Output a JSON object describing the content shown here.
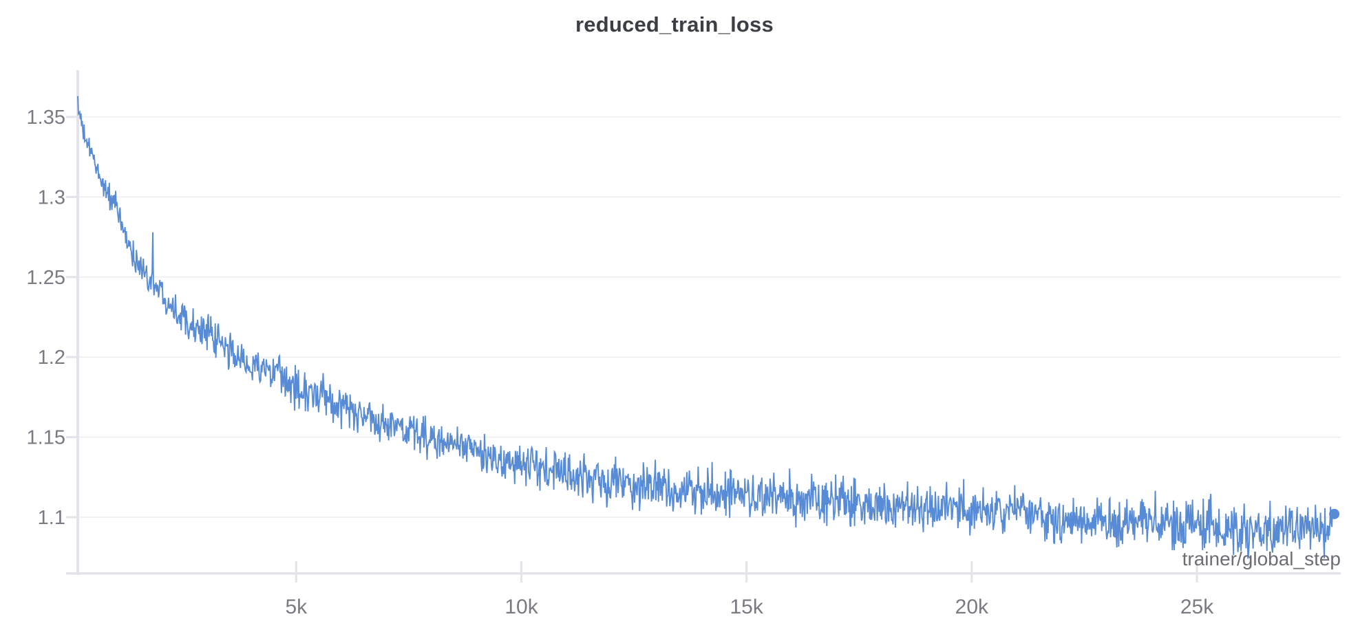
{
  "chart_data": {
    "type": "line",
    "title": "reduced_train_loss",
    "xlabel": "trainer/global_step",
    "ylabel": "",
    "legend": "none",
    "grid": "horizontal-only",
    "background": "#ffffff",
    "line_color": "#588bd6",
    "axis_color": "#e3e3ea",
    "grid_color": "#eeeef2",
    "tick_label_color": "#7b7a82",
    "axis_label_color": "#6e6d75",
    "title_color": "#3b3e44",
    "x_range": [
      150,
      28050
    ],
    "y_range": [
      1.065,
      1.379
    ],
    "x_ticks": [
      {
        "value": 5000,
        "label": "5k"
      },
      {
        "value": 10000,
        "label": "10k"
      },
      {
        "value": 15000,
        "label": "15k"
      },
      {
        "value": 20000,
        "label": "20k"
      },
      {
        "value": 25000,
        "label": "25k"
      }
    ],
    "y_ticks": [
      {
        "value": 1.35,
        "label": "1.35"
      },
      {
        "value": 1.3,
        "label": "1.3"
      },
      {
        "value": 1.25,
        "label": "1.25"
      },
      {
        "value": 1.2,
        "label": "1.2"
      },
      {
        "value": 1.15,
        "label": "1.15"
      },
      {
        "value": 1.1,
        "label": "1.1"
      }
    ],
    "series": [
      {
        "name": "reduced_train_loss",
        "style": "noisy-line",
        "endpoint_marker": true,
        "last_point": {
          "step": 28050,
          "value": 1.102
        },
        "spikes": [
          [
            1816,
            1.278
          ]
        ],
        "trend_points": [
          [
            150,
            1.363
          ],
          [
            200,
            1.349
          ],
          [
            300,
            1.337
          ],
          [
            450,
            1.327
          ],
          [
            600,
            1.316
          ],
          [
            715,
            1.308
          ],
          [
            1000,
            1.293
          ],
          [
            1250,
            1.272
          ],
          [
            1480,
            1.258
          ],
          [
            1816,
            1.247
          ],
          [
            2244,
            1.2325
          ],
          [
            2600,
            1.223
          ],
          [
            3008,
            1.215
          ],
          [
            3400,
            1.206
          ],
          [
            3772,
            1.199
          ],
          [
            4537,
            1.188
          ],
          [
            5000,
            1.181
          ],
          [
            5500,
            1.175
          ],
          [
            6000,
            1.169
          ],
          [
            6500,
            1.1635
          ],
          [
            7000,
            1.158
          ],
          [
            7500,
            1.1535
          ],
          [
            8000,
            1.149
          ],
          [
            8500,
            1.145
          ],
          [
            9100,
            1.14
          ],
          [
            10000,
            1.132
          ],
          [
            11000,
            1.127
          ],
          [
            12000,
            1.1225
          ],
          [
            13000,
            1.119
          ],
          [
            14000,
            1.116
          ],
          [
            15000,
            1.1135
          ],
          [
            16000,
            1.111
          ],
          [
            17000,
            1.109
          ],
          [
            18000,
            1.1075
          ],
          [
            19000,
            1.106
          ],
          [
            20000,
            1.1045
          ],
          [
            21000,
            1.103
          ],
          [
            22000,
            1.0985
          ],
          [
            23000,
            1.097
          ],
          [
            24000,
            1.096
          ],
          [
            25000,
            1.0955
          ],
          [
            26000,
            1.094
          ],
          [
            27000,
            1.0925
          ],
          [
            27700,
            1.0915
          ],
          [
            27950,
            1.0905
          ],
          [
            28050,
            1.102
          ]
        ],
        "noise_halfwidth": [
          [
            150,
            0.009
          ],
          [
            600,
            0.011
          ],
          [
            1500,
            0.013
          ],
          [
            3000,
            0.016
          ],
          [
            5000,
            0.018
          ],
          [
            8000,
            0.019
          ],
          [
            12000,
            0.021
          ],
          [
            16000,
            0.022
          ],
          [
            20000,
            0.022
          ],
          [
            28050,
            0.022
          ]
        ]
      }
    ]
  }
}
